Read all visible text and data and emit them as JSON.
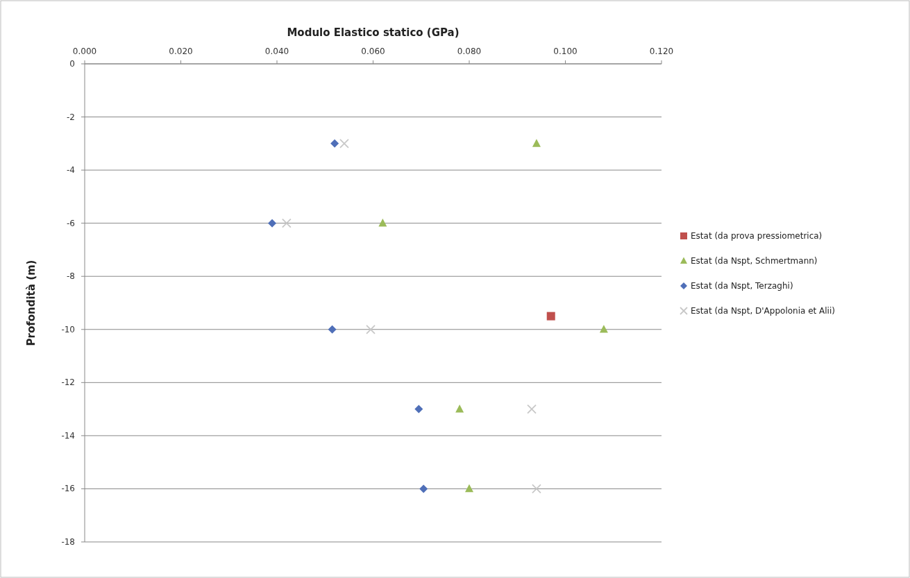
{
  "chart_data": {
    "type": "scatter",
    "xlabel": "Modulo Elastico statico (GPa)",
    "ylabel": "Profondità (m)",
    "xlim": [
      0,
      0.12
    ],
    "xticks": [
      {
        "value": 0,
        "label": "0.000"
      },
      {
        "value": 0.02,
        "label": "0.020"
      },
      {
        "value": 0.04,
        "label": "0.040"
      },
      {
        "value": 0.06,
        "label": "0.060"
      },
      {
        "value": 0.08,
        "label": "0.080"
      },
      {
        "value": 0.1,
        "label": "0.100"
      },
      {
        "value": 0.12,
        "label": "0.120"
      }
    ],
    "ylim": [
      -18,
      0
    ],
    "yticks": [
      0,
      -2,
      -4,
      -6,
      -8,
      -10,
      -12,
      -14,
      -16,
      -18
    ],
    "grid": "y",
    "legend": "right",
    "series": [
      {
        "name": "Estat (da prova pressiometrica)",
        "color": "#c0504d",
        "marker": "square",
        "x": [
          0.097
        ],
        "values": [
          -9.5
        ]
      },
      {
        "name": "Estat (da Nspt, Schmertmann)",
        "color": "#9bbb59",
        "marker": "triangle",
        "x": [
          0.094,
          0.062,
          0.108,
          0.078,
          0.08
        ],
        "values": [
          -3,
          -6,
          -10,
          -13,
          -16
        ]
      },
      {
        "name": "Estat (da Nspt, Terzaghi)",
        "color": "#4f6fb8",
        "marker": "diamond",
        "x": [
          0.052,
          0.039,
          0.0515,
          0.0695,
          0.0705
        ],
        "values": [
          -3,
          -6,
          -10,
          -13,
          -16
        ]
      },
      {
        "name": "Estat (da Nspt, D'Appolonia et Alii)",
        "color": "#c8c8c8",
        "marker": "cross",
        "x": [
          0.054,
          0.042,
          0.0595,
          0.093,
          0.094
        ],
        "values": [
          -3,
          -6,
          -10,
          -13,
          -16
        ]
      }
    ]
  }
}
